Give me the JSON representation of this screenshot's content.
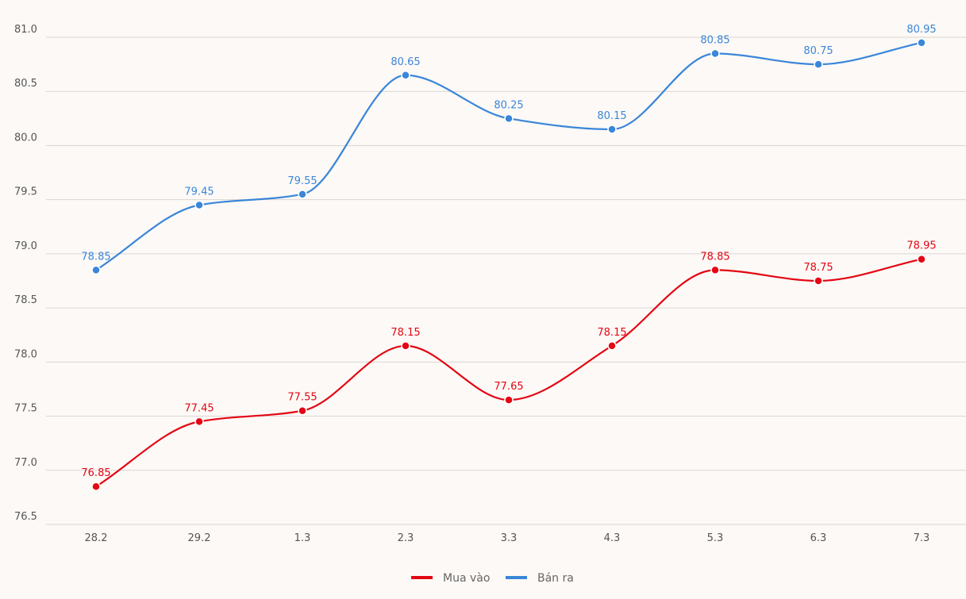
{
  "chart_data": {
    "type": "line",
    "categories": [
      "28.2",
      "29.2",
      "1.3",
      "2.3",
      "3.3",
      "4.3",
      "5.3",
      "6.3",
      "7.3"
    ],
    "series": [
      {
        "name": "Mua vào",
        "color": "#e30613",
        "values": [
          76.85,
          77.45,
          77.55,
          78.15,
          77.65,
          78.15,
          78.85,
          78.75,
          78.95
        ]
      },
      {
        "name": "Bán ra",
        "color": "#3a86d9",
        "values": [
          78.85,
          79.45,
          79.55,
          80.65,
          80.25,
          80.15,
          80.85,
          80.75,
          80.95
        ]
      }
    ],
    "yticks": [
      "76.5",
      "77.0",
      "77.5",
      "78.0",
      "78.5",
      "79.0",
      "79.5",
      "80.0",
      "80.5",
      "81.0"
    ],
    "ylim": [
      76.5,
      81.0
    ],
    "grid": true,
    "legend": "bottom-center"
  }
}
